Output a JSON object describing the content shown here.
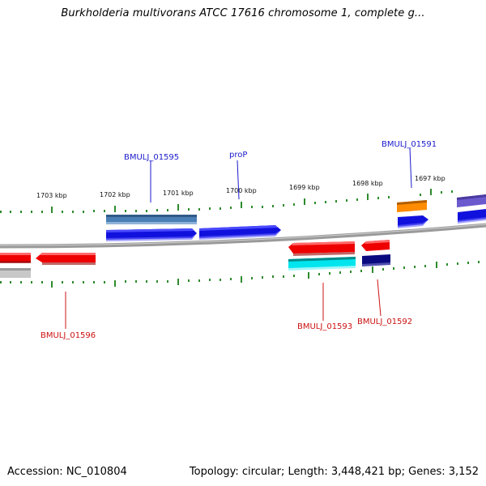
{
  "title": "Burkholderia multivorans ATCC 17616 chromosome 1, complete g...",
  "footer": {
    "accession": "Accession: NC_010804",
    "stats": "Topology: circular; Length: 3,448,421 bp; Genes: 3,152"
  },
  "ruler_labels": [
    "1703 kbp",
    "1702 kbp",
    "1701 kbp",
    "1700 kbp",
    "1699 kbp",
    "1698 kbp",
    "1697 kbp"
  ],
  "gene_labels": {
    "top": [
      "BMULJ_01595",
      "proP",
      "BMULJ_01591"
    ],
    "bottom": [
      "BMULJ_01596",
      "BMULJ_01593",
      "BMULJ_01592"
    ]
  },
  "colors": {
    "forward_label": "#1a1acc",
    "reverse_label": "#cc1111",
    "ruler": "#2e8b2e",
    "backbone": "#808080"
  }
}
